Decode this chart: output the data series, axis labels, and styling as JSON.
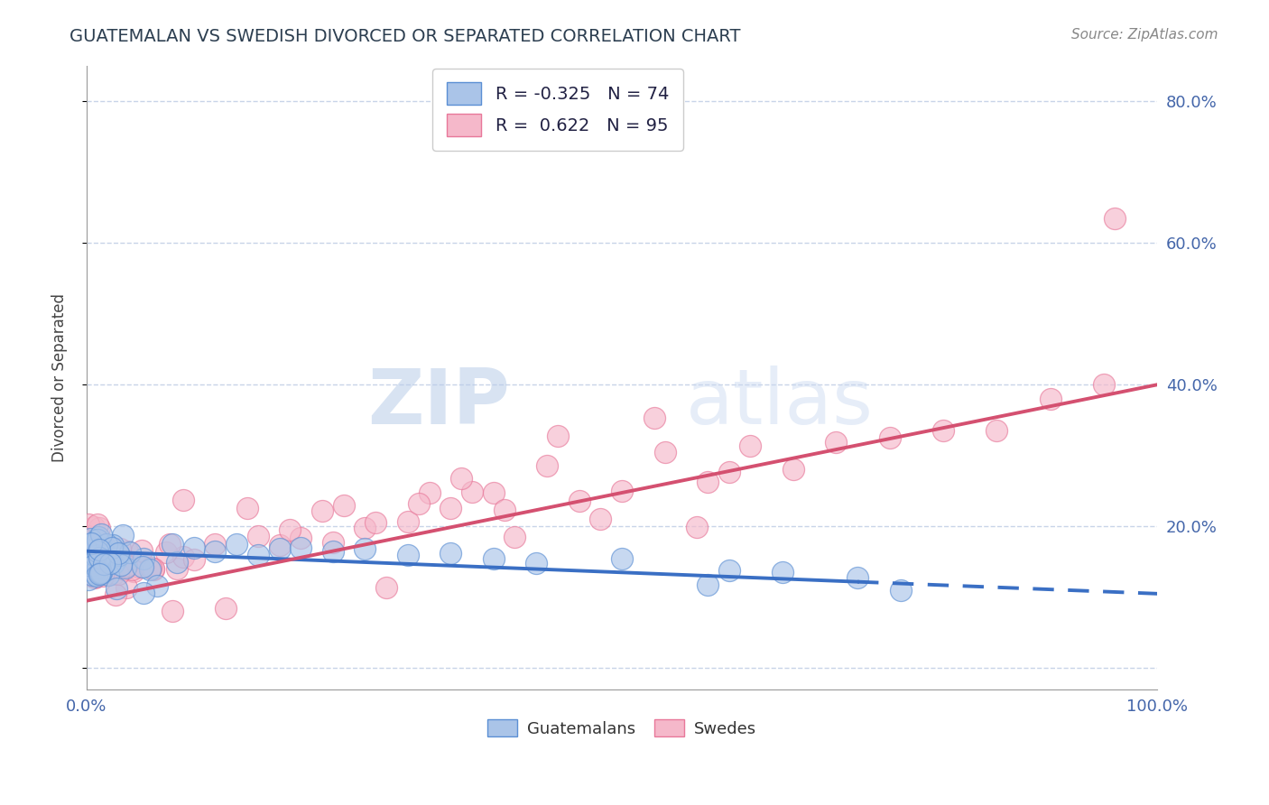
{
  "title": "GUATEMALAN VS SWEDISH DIVORCED OR SEPARATED CORRELATION CHART",
  "source": "Source: ZipAtlas.com",
  "ylabel": "Divorced or Separated",
  "xlim": [
    0.0,
    1.0
  ],
  "ylim": [
    -0.03,
    0.85
  ],
  "xticks": [
    0.0,
    0.1,
    0.2,
    0.3,
    0.4,
    0.5,
    0.6,
    0.7,
    0.8,
    0.9,
    1.0
  ],
  "ytick_positions": [
    0.0,
    0.2,
    0.4,
    0.6,
    0.8
  ],
  "yticklabels": [
    "",
    "20.0%",
    "40.0%",
    "60.0%",
    "80.0%"
  ],
  "blue_color": "#aac4e8",
  "blue_edge_color": "#5b8fd4",
  "pink_color": "#f5b8ca",
  "pink_edge_color": "#e8789a",
  "blue_R": -0.325,
  "blue_N": 74,
  "pink_R": 0.622,
  "pink_N": 95,
  "blue_line_color": "#3a6fc4",
  "pink_line_color": "#d45070",
  "watermark_zip": "ZIP",
  "watermark_atlas": "atlas",
  "background_color": "#ffffff",
  "grid_color": "#c8d4e8",
  "legend_label_blue": "Guatemalans",
  "legend_label_pink": "Swedes",
  "blue_line_start_y": 0.165,
  "blue_line_end_y": 0.105,
  "blue_line_x_solid_end": 0.72,
  "pink_line_start_y": 0.095,
  "pink_line_end_y": 0.4
}
